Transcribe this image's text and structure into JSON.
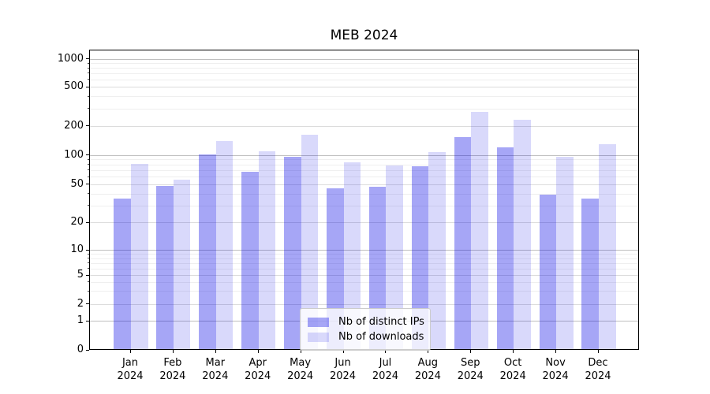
{
  "figure": {
    "title": "MEB 2024",
    "background": "#ffffff"
  },
  "chart_data": {
    "type": "bar",
    "title": "MEB 2024",
    "categories": [
      "Jan",
      "Feb",
      "Mar",
      "Apr",
      "May",
      "Jun",
      "Jul",
      "Aug",
      "Sep",
      "Oct",
      "Nov",
      "Dec"
    ],
    "category_year": "2024",
    "series": [
      {
        "name": "Nb of distinct IPs",
        "color": "rgba(0,0,230,0.35)",
        "color_hex_on_white": "#a6a6f6",
        "values": [
          35,
          47,
          100,
          66,
          94,
          45,
          46,
          75,
          150,
          118,
          38,
          35
        ]
      },
      {
        "name": "Nb of downloads",
        "color": "rgba(0,0,230,0.15)",
        "color_hex_on_white": "#d9d9fb",
        "values": [
          80,
          55,
          138,
          107,
          160,
          82,
          77,
          105,
          273,
          228,
          94,
          128
        ]
      }
    ],
    "xlabel": "",
    "ylabel": "",
    "yscale": "symlog",
    "ylim": [
      0,
      1250
    ],
    "y_tick_values": [
      0,
      1,
      2,
      5,
      10,
      20,
      50,
      100,
      200,
      500,
      1000
    ],
    "y_tick_labels": [
      "0",
      "1",
      "2",
      "5",
      "10",
      "20",
      "50",
      "100",
      "200",
      "500",
      "1000"
    ],
    "scale_anchors": [
      [
        0,
        0.0
      ],
      [
        1,
        0.0961
      ],
      [
        2,
        0.153
      ],
      [
        5,
        0.2493
      ],
      [
        10,
        0.3323
      ],
      [
        20,
        0.4241
      ],
      [
        50,
        0.5512
      ],
      [
        100,
        0.6491
      ],
      [
        200,
        0.7462
      ],
      [
        500,
        0.8766
      ],
      [
        1000,
        0.9693
      ]
    ],
    "grid": {
      "decade_lines": [
        1,
        10,
        100,
        1000
      ],
      "labeled_lines": [
        2,
        5,
        20,
        50,
        200,
        500
      ],
      "minor_lines": [
        3,
        4,
        6,
        7,
        8,
        9,
        30,
        40,
        60,
        70,
        80,
        90,
        300,
        400,
        600,
        700,
        800,
        900
      ]
    },
    "legend_position": "lower center"
  }
}
